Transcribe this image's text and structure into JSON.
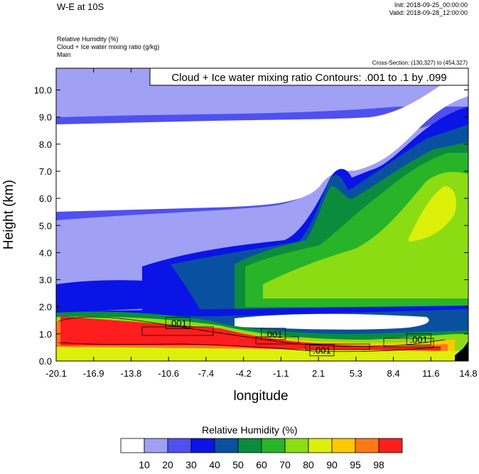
{
  "header": {
    "title": "W-E at 10S",
    "init": "Init: 2018-09-25_00:00:00",
    "valid": "Valid: 2018-09-28_12:00:00",
    "fields": [
      "Relative Humidity   (%)",
      "Cloud + Ice water mixing ratio   (g/kg)",
      "Main"
    ],
    "cross_section": "Cross-Section: (130,327) to (454,327)"
  },
  "chart_data": {
    "type": "heatmap",
    "title": "W-E at 10S",
    "xlabel": "longitude",
    "ylabel": "Height (km)",
    "x_ticks": [
      "-20.1",
      "-16.9",
      "-13.8",
      "-10.6",
      "-7.4",
      "-4.2",
      "-1.1",
      "2.1",
      "5.3",
      "8.4",
      "11.6",
      "14.8"
    ],
    "y_ticks": [
      "0.0",
      "1.0",
      "2.0",
      "3.0",
      "4.0",
      "5.0",
      "6.0",
      "7.0",
      "8.0",
      "9.0",
      "10.0"
    ],
    "xlim": [
      -20.1,
      14.8
    ],
    "ylim": [
      0,
      10.8
    ],
    "contour_box_label": "Cloud + Ice water mixing ratio Contours: .001 to .1 by .099",
    "contour_labels": [
      {
        "text": ".001",
        "x": -9.8,
        "y": 1.4
      },
      {
        "text": ".001",
        "x": -1.7,
        "y": 1.0
      },
      {
        "text": ".001",
        "x": 2.4,
        "y": 0.4
      },
      {
        "text": ".001",
        "x": 10.6,
        "y": 0.8
      }
    ],
    "legend": {
      "title": "Relative Humidity  (%)",
      "levels": [
        "10",
        "20",
        "30",
        "40",
        "50",
        "60",
        "70",
        "80",
        "90",
        "95",
        "98"
      ],
      "colors": [
        "#ffffff",
        "#a0a0f5",
        "#5050f0",
        "#0a14e6",
        "#0a50a0",
        "#0a8c3c",
        "#28b428",
        "#8cdc14",
        "#dcf00a",
        "#ffc800",
        "#ff7814",
        "#ff1e1e"
      ]
    }
  }
}
